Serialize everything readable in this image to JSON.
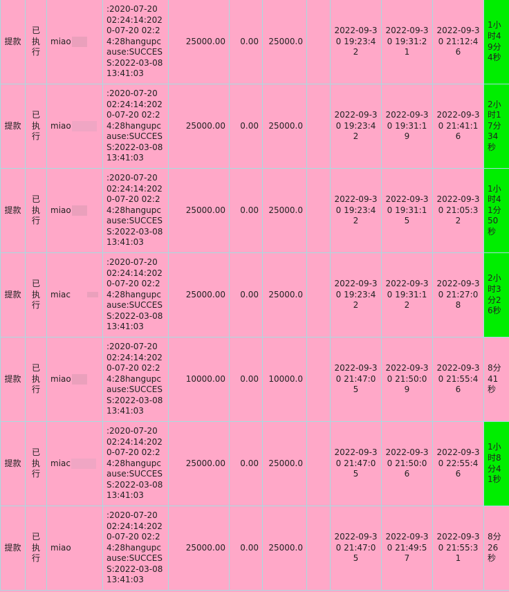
{
  "rows": [
    {
      "type": "提款",
      "status": "已执行",
      "user": "miao",
      "log": ":2020-07-20 02:24:14:2020-07-20 02:24:28hangupcause:SUCCESS:2022-03-08 13:41:03",
      "amount": "25000.00",
      "fee": "0.00",
      "actual": "25000.0",
      "extra": "",
      "time1": "2022-09-30 19:23:42",
      "time2": "2022-09-30 19:31:21",
      "time3": "2022-09-30 21:12:46",
      "duration": "1小时49分4秒",
      "highlight": true
    },
    {
      "type": "提款",
      "status": "已执行",
      "user": "miao",
      "log": ":2020-07-20 02:24:14:2020-07-20 02:24:28hangupcause:SUCCESS:2022-03-08 13:41:03",
      "amount": "25000.00",
      "fee": "0.00",
      "actual": "25000.0",
      "extra": "",
      "time1": "2022-09-30 19:23:42",
      "time2": "2022-09-30 19:31:19",
      "time3": "2022-09-30 21:41:16",
      "duration": "2小时17分34秒",
      "highlight": true
    },
    {
      "type": "提款",
      "status": "已执行",
      "user": "miao",
      "log": ":2020-07-20 02:24:14:2020-07-20 02:24:28hangupcause:SUCCESS:2022-03-08 13:41:03",
      "amount": "25000.00",
      "fee": "0.00",
      "actual": "25000.0",
      "extra": "",
      "time1": "2022-09-30 19:23:42",
      "time2": "2022-09-30 19:31:15",
      "time3": "2022-09-30 21:05:32",
      "duration": "1小时41分50秒",
      "highlight": true
    },
    {
      "type": "提款",
      "status": "已执行",
      "user": "miac",
      "log": ":2020-07-20 02:24:14:2020-07-20 02:24:28hangupcause:SUCCESS:2022-03-08 13:41:03",
      "amount": "25000.00",
      "fee": "0.00",
      "actual": "25000.0",
      "extra": "",
      "time1": "2022-09-30 19:23:42",
      "time2": "2022-09-30 19:31:12",
      "time3": "2022-09-30 21:27:08",
      "duration": "2小时3分26秒",
      "highlight": true
    },
    {
      "type": "提款",
      "status": "已执行",
      "user": "miao",
      "log": ":2020-07-20 02:24:14:2020-07-20 02:24:28hangupcause:SUCCESS:2022-03-08 13:41:03",
      "amount": "10000.00",
      "fee": "0.00",
      "actual": "10000.0",
      "extra": "",
      "time1": "2022-09-30 21:47:05",
      "time2": "2022-09-30 21:50:09",
      "time3": "2022-09-30 21:55:46",
      "duration": "8分41秒",
      "highlight": false
    },
    {
      "type": "提款",
      "status": "已执行",
      "user": "miac",
      "log": ":2020-07-20 02:24:14:2020-07-20 02:24:28hangupcause:SUCCESS:2022-03-08 13:41:03",
      "amount": "25000.00",
      "fee": "0.00",
      "actual": "25000.0",
      "extra": "",
      "time1": "2022-09-30 21:47:05",
      "time2": "2022-09-30 21:50:06",
      "time3": "2022-09-30 22:55:46",
      "duration": "1小时8分41秒",
      "highlight": true
    },
    {
      "type": "提款",
      "status": "已执行",
      "user": "miao",
      "log": ":2020-07-20 02:24:14:2020-07-20 02:24:28hangupcause:SUCCESS:2022-03-08 13:41:03",
      "amount": "25000.00",
      "fee": "0.00",
      "actual": "25000.0",
      "extra": "",
      "time1": "2022-09-30 21:47:05",
      "time2": "2022-09-30 21:49:57",
      "time3": "2022-09-30 21:55:31",
      "duration": "8分26秒",
      "highlight": false
    }
  ],
  "colors": {
    "row_bg": "#ffa8c8",
    "highlight": "#00ee00",
    "border": "#a6dce0"
  }
}
